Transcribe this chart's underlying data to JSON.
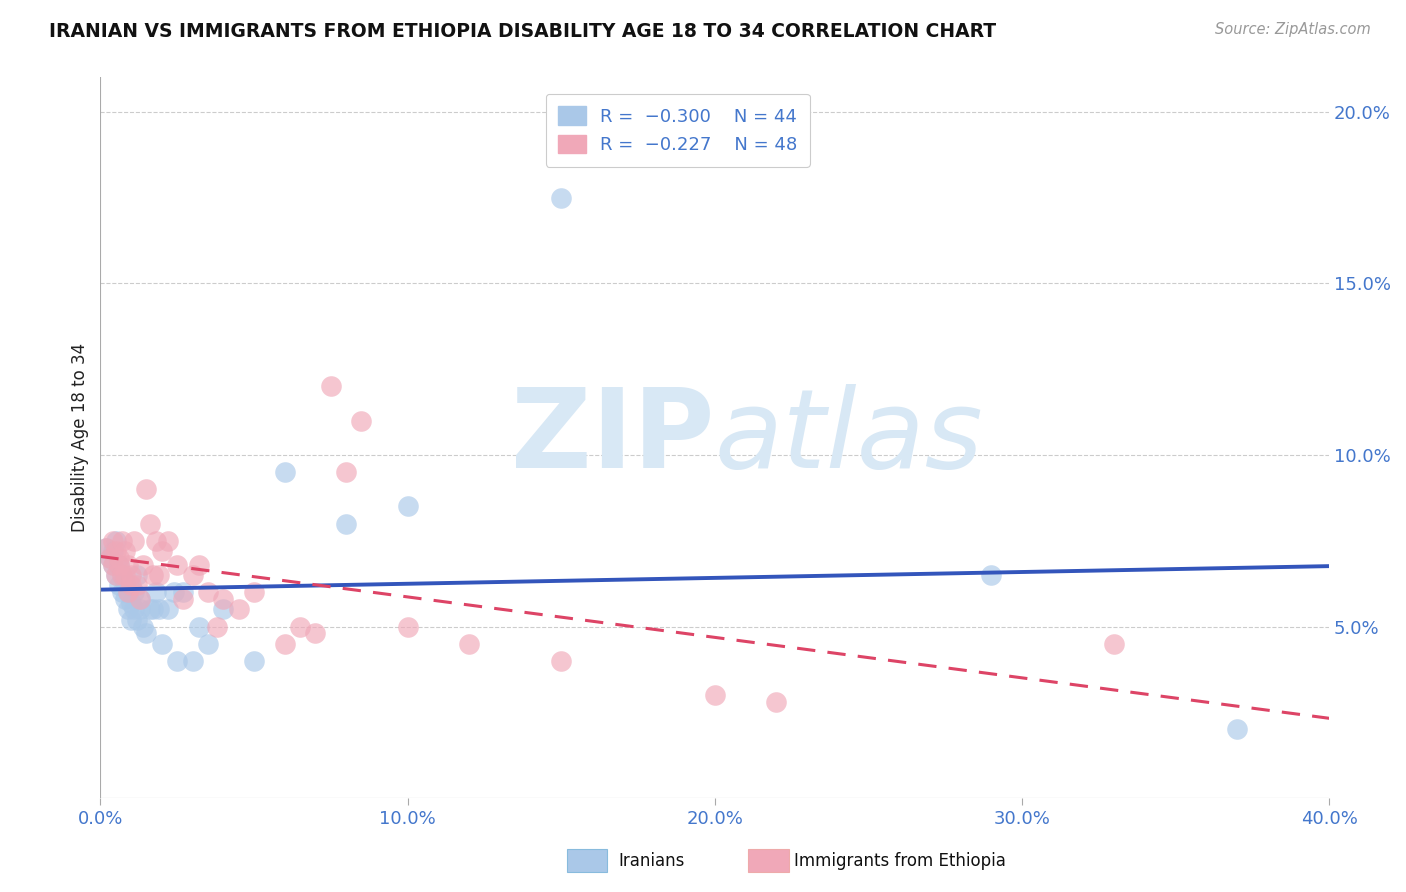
{
  "title": "IRANIAN VS IMMIGRANTS FROM ETHIOPIA DISABILITY AGE 18 TO 34 CORRELATION CHART",
  "source": "Source: ZipAtlas.com",
  "ylabel_label": "Disability Age 18 to 34",
  "x_min": 0.0,
  "x_max": 0.4,
  "y_min": 0.0,
  "y_max": 0.21,
  "x_ticks": [
    0.0,
    0.1,
    0.2,
    0.3,
    0.4
  ],
  "x_tick_labels": [
    "0.0%",
    "10.0%",
    "20.0%",
    "30.0%",
    "40.0%"
  ],
  "y_ticks": [
    0.05,
    0.1,
    0.15,
    0.2
  ],
  "y_tick_labels": [
    "5.0%",
    "10.0%",
    "15.0%",
    "20.0%"
  ],
  "legend_r_color": "#4477cc",
  "iranians_color": "#aac8e8",
  "ethiopia_color": "#f0a8b8",
  "trendline_iran_color": "#3355bb",
  "trendline_eth_color": "#dd4466",
  "watermark_color": "#d8e8f5",
  "background_color": "#ffffff",
  "grid_color": "#cccccc",
  "iranians_x": [
    0.002,
    0.003,
    0.004,
    0.004,
    0.005,
    0.005,
    0.006,
    0.006,
    0.007,
    0.007,
    0.008,
    0.008,
    0.009,
    0.009,
    0.01,
    0.01,
    0.011,
    0.011,
    0.012,
    0.012,
    0.013,
    0.013,
    0.014,
    0.015,
    0.016,
    0.017,
    0.018,
    0.019,
    0.02,
    0.022,
    0.024,
    0.025,
    0.027,
    0.03,
    0.032,
    0.035,
    0.04,
    0.05,
    0.06,
    0.08,
    0.1,
    0.15,
    0.29,
    0.37
  ],
  "iranians_y": [
    0.073,
    0.07,
    0.068,
    0.072,
    0.065,
    0.075,
    0.068,
    0.062,
    0.06,
    0.065,
    0.058,
    0.063,
    0.055,
    0.06,
    0.057,
    0.052,
    0.055,
    0.06,
    0.052,
    0.065,
    0.058,
    0.055,
    0.05,
    0.048,
    0.055,
    0.055,
    0.06,
    0.055,
    0.045,
    0.055,
    0.06,
    0.04,
    0.06,
    0.04,
    0.05,
    0.045,
    0.055,
    0.04,
    0.095,
    0.08,
    0.085,
    0.175,
    0.065,
    0.02
  ],
  "ethiopia_x": [
    0.002,
    0.003,
    0.004,
    0.004,
    0.005,
    0.005,
    0.006,
    0.006,
    0.007,
    0.007,
    0.008,
    0.008,
    0.009,
    0.009,
    0.01,
    0.01,
    0.011,
    0.012,
    0.013,
    0.014,
    0.015,
    0.016,
    0.017,
    0.018,
    0.019,
    0.02,
    0.022,
    0.025,
    0.027,
    0.03,
    0.032,
    0.035,
    0.038,
    0.04,
    0.045,
    0.05,
    0.06,
    0.065,
    0.07,
    0.075,
    0.08,
    0.085,
    0.1,
    0.12,
    0.15,
    0.2,
    0.22,
    0.33
  ],
  "ethiopia_y": [
    0.073,
    0.07,
    0.068,
    0.075,
    0.072,
    0.065,
    0.068,
    0.07,
    0.065,
    0.075,
    0.065,
    0.072,
    0.06,
    0.068,
    0.062,
    0.065,
    0.075,
    0.062,
    0.058,
    0.068,
    0.09,
    0.08,
    0.065,
    0.075,
    0.065,
    0.072,
    0.075,
    0.068,
    0.058,
    0.065,
    0.068,
    0.06,
    0.05,
    0.058,
    0.055,
    0.06,
    0.045,
    0.05,
    0.048,
    0.12,
    0.095,
    0.11,
    0.05,
    0.045,
    0.04,
    0.03,
    0.028,
    0.045
  ]
}
